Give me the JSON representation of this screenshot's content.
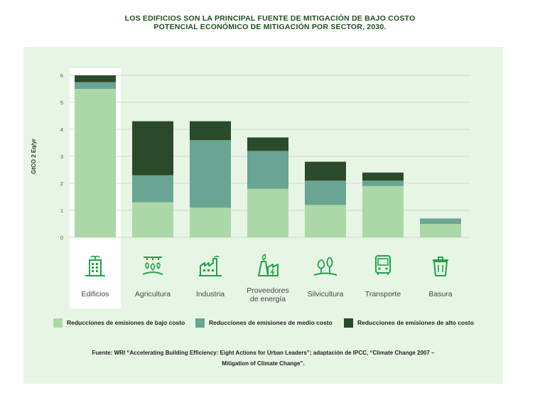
{
  "title_line1": "LOS EDIFICIOS SON LA PRINCIPAL FUENTE DE MITIGACIÓN DE BAJO COSTO",
  "title_line2": "POTENCIAL ECONÓMICO DE MITIGACIÓN POR SECTOR, 2030.",
  "colors": {
    "low": "#acd8a8",
    "medium": "#69a592",
    "high": "#2b4a2a",
    "icon": "#1fa34a",
    "highlight": "#ffffff",
    "grid": "#cfdccc",
    "panel": "#e7f5e4"
  },
  "chart_data": {
    "type": "bar",
    "stacked": true,
    "ylabel": "GtCO 2 Eq/yr",
    "ylim": [
      0,
      6
    ],
    "yticks": [
      "0",
      "1",
      "2",
      "3",
      "4",
      "5",
      "6"
    ],
    "categories": [
      "Edificios",
      "Agricultura",
      "Industria",
      "Proveedores de energía",
      "Silvicultura",
      "Transporte",
      "Basura"
    ],
    "category_lines": [
      [
        "Edificios"
      ],
      [
        "Agricultura"
      ],
      [
        "Industria"
      ],
      [
        "Proveedores",
        "de energía"
      ],
      [
        "Silvicultura"
      ],
      [
        "Transporte"
      ],
      [
        "Basura"
      ]
    ],
    "icons": [
      "building-icon",
      "agriculture-icon",
      "factory-icon",
      "power-plant-icon",
      "forest-icon",
      "bus-icon",
      "trash-bin-icon"
    ],
    "series": [
      {
        "name": "Reducciones de emisiones de bajo costo",
        "values": [
          5.5,
          1.3,
          1.1,
          1.8,
          1.2,
          1.9,
          0.5
        ]
      },
      {
        "name": "Reducciones de emisiones de medio costo",
        "values": [
          0.25,
          1.0,
          2.5,
          1.4,
          0.9,
          0.2,
          0.2
        ]
      },
      {
        "name": "Reducciones de emisiones de alto costo",
        "values": [
          0.25,
          2.0,
          0.7,
          0.5,
          0.7,
          0.3,
          0.0
        ]
      }
    ],
    "highlighted_category": "Edificios",
    "grid": true,
    "legend_position": "bottom"
  },
  "source_line1": "Fuente: WRI “Accelerating Building Efficiency: Eight Actions for Urban Leaders”; adaptación de IPCC, “Climate Change 2007 –",
  "source_line2": "Mitigation of Climate Change”."
}
